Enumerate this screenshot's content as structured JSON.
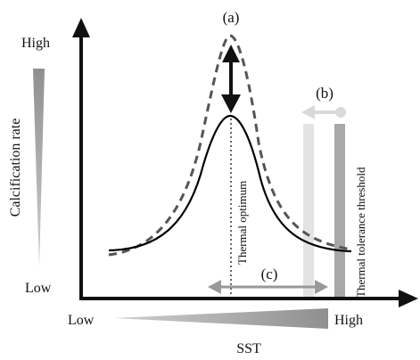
{
  "y_axis": {
    "label": "Calcification rate",
    "high": "High",
    "low": "Low"
  },
  "x_axis": {
    "label": "SST",
    "low": "Low",
    "high": "High"
  },
  "markers": {
    "a": "(a)",
    "b": "(b)",
    "c": "(c)"
  },
  "vertical_labels": {
    "thermal_optimum": "Thermal optimum",
    "thermal_tolerance_threshold": "Thermal tolerance threshold"
  },
  "colors": {
    "axis": "#111111",
    "solid_curve": "#000000",
    "dashed_curve": "#555555",
    "light_gray_bar": "#e3e3e3",
    "mid_gray_bar": "#a8a8a8",
    "arrow_gray": "#999999",
    "light_arrow": "#d9d9d9"
  }
}
